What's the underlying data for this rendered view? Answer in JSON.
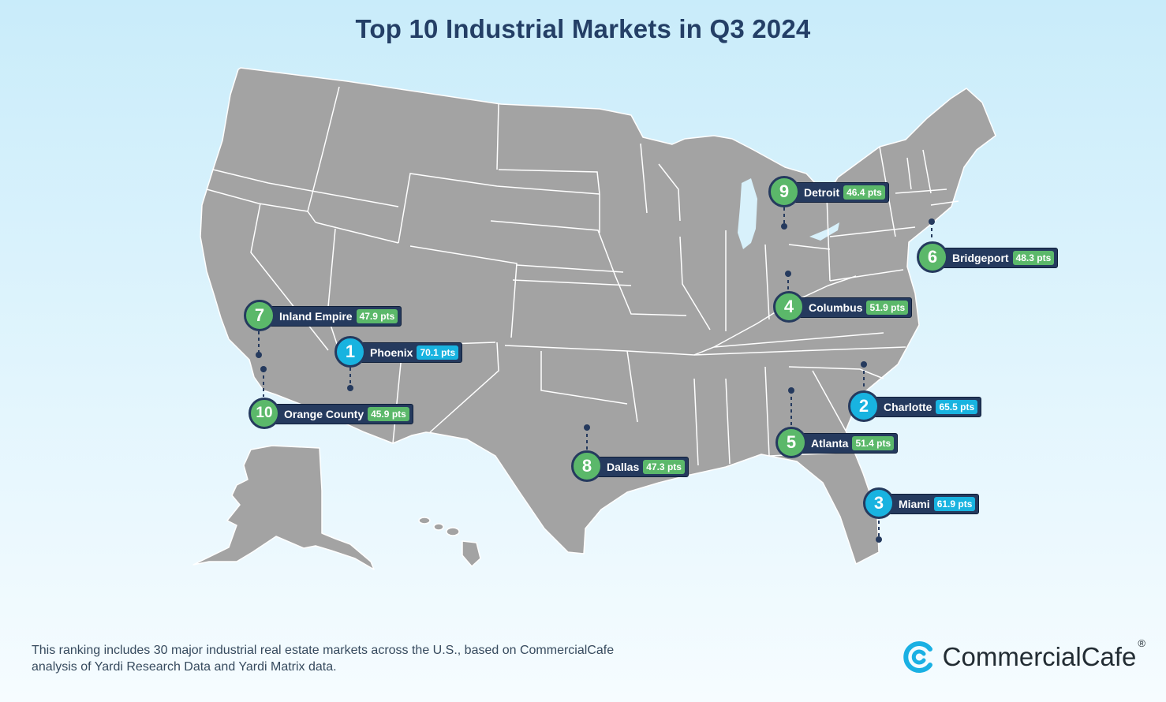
{
  "title": "Top 10 Industrial Markets in Q3 2024",
  "colors": {
    "top3_badge": "#18b3e0",
    "other_badge": "#5bb86a",
    "label_bg": "#253a5e",
    "land": "#a3a3a3",
    "state_border": "#ffffff",
    "title": "#243f66"
  },
  "markets": [
    {
      "rank": "1",
      "name": "Phoenix",
      "score": "70.1 pts"
    },
    {
      "rank": "2",
      "name": "Charlotte",
      "score": "65.5 pts"
    },
    {
      "rank": "3",
      "name": "Miami",
      "score": "61.9 pts"
    },
    {
      "rank": "4",
      "name": "Columbus",
      "score": "51.9 pts"
    },
    {
      "rank": "5",
      "name": "Atlanta",
      "score": "51.4 pts"
    },
    {
      "rank": "6",
      "name": "Bridgeport",
      "score": "48.3 pts"
    },
    {
      "rank": "7",
      "name": "Inland Empire",
      "score": "47.9 pts"
    },
    {
      "rank": "8",
      "name": "Dallas",
      "score": "47.3 pts"
    },
    {
      "rank": "9",
      "name": "Detroit",
      "score": "46.4 pts"
    },
    {
      "rank": "10",
      "name": "Orange County",
      "score": "45.9 pts"
    }
  ],
  "footnote": "This ranking includes 30 major industrial real estate markets across the U.S., based on CommercialCafe analysis of Yardi Research Data and Yardi Matrix data.",
  "logo": {
    "text": "CommercialCafe",
    "registered": "®",
    "icon": "commercialcafe-c-icon"
  }
}
